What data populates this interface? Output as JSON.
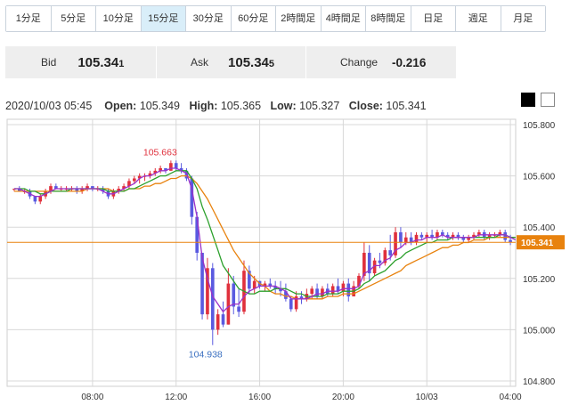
{
  "timeframes": {
    "tab_1m": "1分足",
    "tab_5m": "5分足",
    "tab_10m": "10分足",
    "tab_15m": "15分足",
    "tab_30m": "30分足",
    "tab_60m": "60分足",
    "tab_2h": "2時間足",
    "tab_4h": "4時間足",
    "tab_8h": "8時間足",
    "tab_day": "日足",
    "tab_week": "週足",
    "tab_month": "月足",
    "active": "15分足"
  },
  "quote": {
    "bid_label": "Bid",
    "bid_main": "105.34",
    "bid_tail": "1",
    "ask_label": "Ask",
    "ask_main": "105.34",
    "ask_tail": "5",
    "change_label": "Change",
    "change_value": "-0.216"
  },
  "ohlc": {
    "datetime": "2020/10/03 05:45",
    "open_label": "Open:",
    "open": "105.349",
    "high_label": "High:",
    "high": "105.365",
    "low_label": "Low:",
    "low": "105.327",
    "close_label": "Close:",
    "close": "105.341"
  },
  "colors": {
    "up_candle": "#e0303c",
    "down_candle": "#5a5ae0",
    "ma_short": "#9b30c8",
    "ma_mid": "#2ca02c",
    "ma_long": "#e8820e",
    "price_line": "#e8820e",
    "high_label": "#e0303c",
    "low_label": "#3a6fc0",
    "grid": "#d8d8d8"
  },
  "chart_data": {
    "type": "candlestick",
    "ylim": [
      104.8,
      105.8
    ],
    "yticks": [
      "105.800",
      "105.600",
      "105.400",
      "105.200",
      "105.000",
      "104.800"
    ],
    "xticks": [
      "08:00",
      "12:00",
      "16:00",
      "20:00",
      "10/03",
      "04:00"
    ],
    "last_price": "105.341",
    "annotations": {
      "high": "105.663",
      "low": "104.938"
    },
    "candles": [
      [
        105.55,
        105.55,
        105.54,
        105.55
      ],
      [
        105.55,
        105.56,
        105.54,
        105.54
      ],
      [
        105.54,
        105.55,
        105.53,
        105.54
      ],
      [
        105.54,
        105.55,
        105.51,
        105.52
      ],
      [
        105.52,
        105.52,
        105.49,
        105.5
      ],
      [
        105.5,
        105.53,
        105.49,
        105.52
      ],
      [
        105.52,
        105.55,
        105.51,
        105.54
      ],
      [
        105.54,
        105.57,
        105.53,
        105.56
      ],
      [
        105.56,
        105.57,
        105.55,
        105.55
      ],
      [
        105.55,
        105.56,
        105.54,
        105.55
      ],
      [
        105.55,
        105.56,
        105.54,
        105.55
      ],
      [
        105.55,
        105.56,
        105.54,
        105.55
      ],
      [
        105.55,
        105.56,
        105.53,
        105.54
      ],
      [
        105.54,
        105.56,
        105.53,
        105.55
      ],
      [
        105.55,
        105.57,
        105.54,
        105.56
      ],
      [
        105.56,
        105.56,
        105.54,
        105.55
      ],
      [
        105.55,
        105.56,
        105.54,
        105.55
      ],
      [
        105.55,
        105.56,
        105.53,
        105.54
      ],
      [
        105.54,
        105.55,
        105.51,
        105.52
      ],
      [
        105.52,
        105.55,
        105.51,
        105.54
      ],
      [
        105.54,
        105.56,
        105.53,
        105.55
      ],
      [
        105.55,
        105.57,
        105.54,
        105.56
      ],
      [
        105.56,
        105.59,
        105.55,
        105.58
      ],
      [
        105.58,
        105.6,
        105.57,
        105.59
      ],
      [
        105.59,
        105.61,
        105.57,
        105.6
      ],
      [
        105.6,
        105.61,
        105.58,
        105.6
      ],
      [
        105.6,
        105.62,
        105.59,
        105.61
      ],
      [
        105.61,
        105.63,
        105.6,
        105.62
      ],
      [
        105.62,
        105.64,
        105.61,
        105.63
      ],
      [
        105.63,
        105.63,
        105.61,
        105.62
      ],
      [
        105.62,
        105.66,
        105.62,
        105.65
      ],
      [
        105.65,
        105.66,
        105.62,
        105.63
      ],
      [
        105.63,
        105.65,
        105.61,
        105.62
      ],
      [
        105.62,
        105.63,
        105.58,
        105.59
      ],
      [
        105.59,
        105.6,
        105.41,
        105.44
      ],
      [
        105.44,
        105.46,
        105.27,
        105.3
      ],
      [
        105.3,
        105.3,
        105.04,
        105.06
      ],
      [
        105.06,
        105.28,
        105.04,
        105.24
      ],
      [
        105.24,
        105.26,
        104.94,
        105.0
      ],
      [
        105.0,
        105.08,
        104.98,
        105.06
      ],
      [
        105.06,
        105.11,
        105.01,
        105.02
      ],
      [
        105.02,
        105.24,
        105.02,
        105.18
      ],
      [
        105.18,
        105.21,
        105.06,
        105.09
      ],
      [
        105.09,
        105.16,
        105.05,
        105.07
      ],
      [
        105.07,
        105.27,
        105.06,
        105.23
      ],
      [
        105.23,
        105.25,
        105.14,
        105.16
      ],
      [
        105.16,
        105.21,
        105.14,
        105.19
      ],
      [
        105.19,
        105.19,
        105.16,
        105.17
      ],
      [
        105.17,
        105.19,
        105.15,
        105.18
      ],
      [
        105.18,
        105.2,
        105.16,
        105.17
      ],
      [
        105.17,
        105.19,
        105.14,
        105.16
      ],
      [
        105.16,
        105.19,
        105.13,
        105.15
      ],
      [
        105.15,
        105.18,
        105.11,
        105.12
      ],
      [
        105.12,
        105.13,
        105.07,
        105.08
      ],
      [
        105.08,
        105.15,
        105.07,
        105.13
      ],
      [
        105.13,
        105.15,
        105.1,
        105.12
      ],
      [
        105.12,
        105.16,
        105.11,
        105.14
      ],
      [
        105.14,
        105.17,
        105.12,
        105.16
      ],
      [
        105.16,
        105.18,
        105.12,
        105.13
      ],
      [
        105.13,
        105.17,
        105.12,
        105.16
      ],
      [
        105.16,
        105.18,
        105.13,
        105.14
      ],
      [
        105.14,
        105.18,
        105.13,
        105.17
      ],
      [
        105.17,
        105.2,
        105.14,
        105.15
      ],
      [
        105.15,
        105.19,
        105.13,
        105.18
      ],
      [
        105.18,
        105.2,
        105.11,
        105.13
      ],
      [
        105.13,
        105.19,
        105.13,
        105.17
      ],
      [
        105.17,
        105.22,
        105.16,
        105.21
      ],
      [
        105.21,
        105.34,
        105.19,
        105.3
      ],
      [
        105.3,
        105.33,
        105.19,
        105.22
      ],
      [
        105.22,
        105.28,
        105.21,
        105.27
      ],
      [
        105.27,
        105.3,
        105.24,
        105.26
      ],
      [
        105.26,
        105.32,
        105.25,
        105.31
      ],
      [
        105.31,
        105.37,
        105.27,
        105.29
      ],
      [
        105.29,
        105.4,
        105.28,
        105.38
      ],
      [
        105.38,
        105.4,
        105.32,
        105.34
      ],
      [
        105.34,
        105.38,
        105.33,
        105.36
      ],
      [
        105.36,
        105.38,
        105.33,
        105.34
      ],
      [
        105.34,
        105.38,
        105.33,
        105.37
      ],
      [
        105.37,
        105.38,
        105.35,
        105.36
      ],
      [
        105.36,
        105.38,
        105.34,
        105.37
      ],
      [
        105.37,
        105.39,
        105.35,
        105.36
      ],
      [
        105.36,
        105.39,
        105.35,
        105.38
      ],
      [
        105.38,
        105.39,
        105.36,
        105.37
      ],
      [
        105.37,
        105.38,
        105.35,
        105.36
      ],
      [
        105.36,
        105.38,
        105.35,
        105.37
      ],
      [
        105.37,
        105.38,
        105.35,
        105.36
      ],
      [
        105.36,
        105.37,
        105.34,
        105.35
      ],
      [
        105.35,
        105.37,
        105.34,
        105.36
      ],
      [
        105.36,
        105.38,
        105.35,
        105.37
      ],
      [
        105.37,
        105.39,
        105.36,
        105.38
      ],
      [
        105.38,
        105.39,
        105.35,
        105.36
      ],
      [
        105.36,
        105.38,
        105.35,
        105.37
      ],
      [
        105.37,
        105.38,
        105.36,
        105.37
      ],
      [
        105.37,
        105.39,
        105.36,
        105.38
      ],
      [
        105.38,
        105.39,
        105.34,
        105.35
      ],
      [
        105.35,
        105.37,
        105.33,
        105.34
      ]
    ],
    "ma_short": [
      105.55,
      105.55,
      105.54,
      105.53,
      105.52,
      105.52,
      105.53,
      105.54,
      105.55,
      105.55,
      105.55,
      105.55,
      105.55,
      105.55,
      105.55,
      105.55,
      105.55,
      105.54,
      105.53,
      105.53,
      105.54,
      105.55,
      105.56,
      105.57,
      105.59,
      105.6,
      105.6,
      105.61,
      105.62,
      105.62,
      105.63,
      105.63,
      105.62,
      105.61,
      105.55,
      105.44,
      105.28,
      105.2,
      105.13,
      105.1,
      105.07,
      105.09,
      105.1,
      105.1,
      105.13,
      105.15,
      105.16,
      105.17,
      105.17,
      105.17,
      105.17,
      105.16,
      105.15,
      105.12,
      105.12,
      105.12,
      105.12,
      105.13,
      105.14,
      105.14,
      105.15,
      105.15,
      105.15,
      105.16,
      105.16,
      105.16,
      105.17,
      105.22,
      105.23,
      105.25,
      105.25,
      105.27,
      105.28,
      105.31,
      105.32,
      105.34,
      105.34,
      105.35,
      105.35,
      105.36,
      105.36,
      105.36,
      105.37,
      105.36,
      105.36,
      105.36,
      105.36,
      105.36,
      105.36,
      105.37,
      105.37,
      105.37,
      105.37,
      105.37,
      105.37,
      105.36,
      105.35
    ],
    "ma_mid": [
      105.55,
      105.55,
      105.55,
      105.54,
      105.54,
      105.53,
      105.53,
      105.54,
      105.54,
      105.54,
      105.54,
      105.55,
      105.55,
      105.55,
      105.55,
      105.55,
      105.55,
      105.55,
      105.54,
      105.54,
      105.54,
      105.54,
      105.55,
      105.55,
      105.56,
      105.57,
      105.58,
      105.59,
      105.6,
      105.6,
      105.61,
      105.62,
      105.62,
      105.62,
      105.59,
      105.55,
      105.48,
      105.43,
      105.37,
      105.31,
      105.25,
      105.22,
      105.19,
      105.16,
      105.15,
      105.14,
      105.14,
      105.15,
      105.15,
      105.15,
      105.16,
      105.16,
      105.16,
      105.15,
      105.14,
      105.14,
      105.13,
      105.13,
      105.13,
      105.13,
      105.14,
      105.14,
      105.14,
      105.15,
      105.15,
      105.15,
      105.16,
      105.18,
      105.19,
      105.21,
      105.22,
      105.23,
      105.25,
      105.27,
      105.28,
      105.3,
      105.31,
      105.32,
      105.33,
      105.34,
      105.34,
      105.35,
      105.35,
      105.35,
      105.36,
      105.36,
      105.36,
      105.36,
      105.36,
      105.36,
      105.36,
      105.36,
      105.36,
      105.37,
      105.37,
      105.36,
      105.36
    ],
    "ma_long": [
      105.54,
      105.54,
      105.54,
      105.54,
      105.54,
      105.54,
      105.54,
      105.54,
      105.54,
      105.54,
      105.54,
      105.54,
      105.54,
      105.54,
      105.55,
      105.55,
      105.55,
      105.55,
      105.55,
      105.54,
      105.54,
      105.54,
      105.55,
      105.55,
      105.55,
      105.56,
      105.56,
      105.57,
      105.57,
      105.58,
      105.59,
      105.59,
      105.6,
      105.6,
      105.59,
      105.57,
      105.54,
      105.51,
      105.47,
      105.43,
      105.39,
      105.35,
      105.31,
      105.28,
      105.25,
      105.22,
      105.2,
      105.18,
      105.17,
      105.15,
      105.14,
      105.14,
      105.13,
      105.13,
      105.12,
      105.12,
      105.12,
      105.12,
      105.12,
      105.12,
      105.13,
      105.13,
      105.13,
      105.14,
      105.14,
      105.14,
      105.15,
      105.16,
      105.17,
      105.18,
      105.19,
      105.2,
      105.21,
      105.22,
      105.23,
      105.25,
      105.26,
      105.27,
      105.28,
      105.29,
      105.3,
      105.31,
      105.32,
      105.32,
      105.33,
      105.33,
      105.34,
      105.34,
      105.35,
      105.35,
      105.35,
      105.36,
      105.36,
      105.36,
      105.36,
      105.36,
      105.36
    ]
  }
}
